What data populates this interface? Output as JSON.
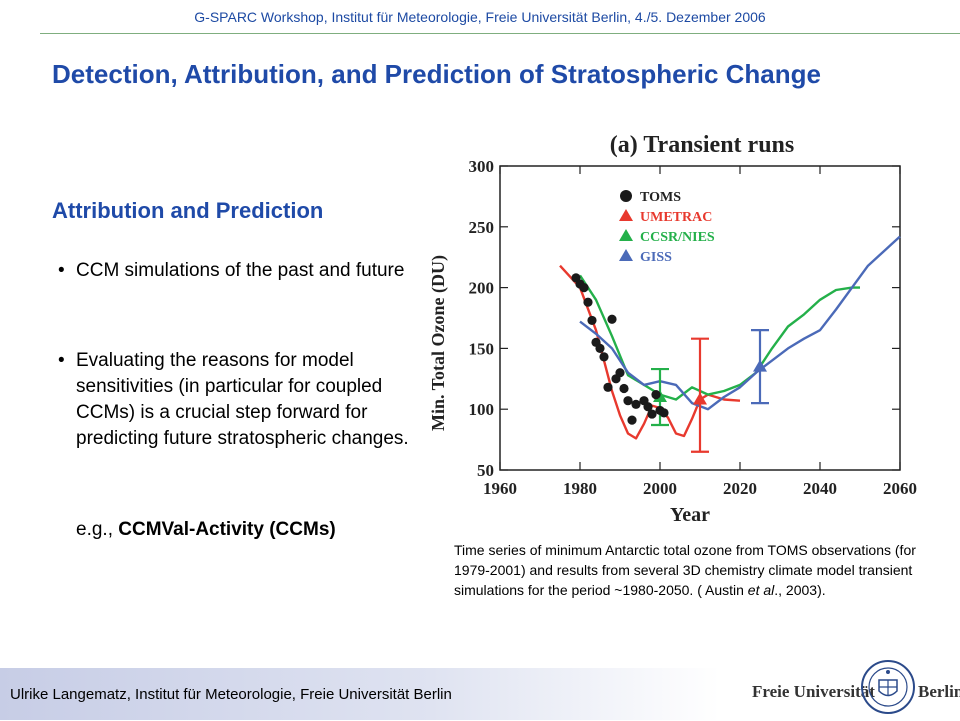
{
  "header": {
    "text": "G-SPARC Workshop, Institut für Meteorologie, Freie Universität Berlin, 4./5. Dezember 2006"
  },
  "title": "Detection, Attribution, and Prediction of Stratospheric Change",
  "section": {
    "heading": "Attribution and Prediction",
    "bullets": [
      "CCM simulations of the past and future",
      "Evaluating the reasons for model sensitivities (in particular for coupled CCMs) is a crucial step forward for predicting future stratospheric changes."
    ],
    "example_prefix": "e.g., ",
    "example_bold": "CCMVal-Activity (CCMs)"
  },
  "caption": {
    "part1": "Time series of minimum Antarctic total ozone from TOMS observations (for 1979-2001) and results from several 3D chemistry climate model transient simulations for the period ~1980-2050. ( Austin ",
    "italic": "et al",
    "part2": "., 2003)."
  },
  "footer": {
    "author": "Ulrike Langematz, Institut für Meteorologie, Freie Universität Berlin",
    "logo_left": "Freie Universität",
    "logo_right": "Berlin"
  },
  "chart_data": {
    "type": "line",
    "title": "(a) Transient runs",
    "xlabel": "Year",
    "ylabel": "Min. Total Ozone (DU)",
    "xlim": [
      1960,
      2060
    ],
    "ylim": [
      50,
      300
    ],
    "xticks": [
      1960,
      1980,
      2000,
      2020,
      2040,
      2060
    ],
    "yticks": [
      50,
      100,
      150,
      200,
      250,
      300
    ],
    "legend_position": "top-left",
    "colors": {
      "toms": "#1a1a1a",
      "umetrac": "#e8392e",
      "ccsr": "#24b04a",
      "giss": "#4b6ab8"
    },
    "series": [
      {
        "name": "TOMS",
        "kind": "points",
        "color": "#1a1a1a",
        "x": [
          1979,
          1980,
          1981,
          1982,
          1983,
          1984,
          1985,
          1986,
          1987,
          1988,
          1989,
          1990,
          1991,
          1992,
          1993,
          1994,
          1996,
          1997,
          1998,
          1999,
          2000,
          2001
        ],
        "y": [
          208,
          203,
          200,
          188,
          173,
          155,
          150,
          143,
          118,
          174,
          125,
          130,
          117,
          107,
          91,
          104,
          107,
          102,
          96,
          112,
          99,
          97
        ]
      },
      {
        "name": "UMETRAC",
        "kind": "line",
        "color": "#e8392e",
        "x": [
          1975,
          1980,
          1984,
          1986,
          1988,
          1990,
          1992,
          1994,
          1996,
          1998,
          2000,
          2002,
          2004,
          2006,
          2008,
          2010,
          2012,
          2016,
          2020
        ],
        "y": [
          218,
          200,
          165,
          140,
          115,
          95,
          80,
          76,
          88,
          103,
          101,
          93,
          80,
          78,
          92,
          108,
          112,
          108,
          107
        ]
      },
      {
        "name": "CCSR/NIES",
        "kind": "line",
        "color": "#24b04a",
        "x": [
          1980,
          1984,
          1988,
          1992,
          1996,
          2000,
          2004,
          2008,
          2012,
          2016,
          2020,
          2024,
          2028,
          2032,
          2036,
          2040,
          2044,
          2048,
          2050
        ],
        "y": [
          210,
          190,
          160,
          128,
          120,
          112,
          108,
          118,
          112,
          115,
          120,
          130,
          150,
          168,
          178,
          190,
          198,
          200,
          200
        ]
      },
      {
        "name": "GISS",
        "kind": "line",
        "color": "#4b6ab8",
        "x": [
          1980,
          1984,
          1988,
          1992,
          1996,
          2000,
          2004,
          2008,
          2012,
          2016,
          2020,
          2024,
          2028,
          2032,
          2036,
          2040,
          2044,
          2048,
          2052,
          2056,
          2060
        ],
        "y": [
          172,
          162,
          150,
          130,
          120,
          123,
          120,
          105,
          100,
          110,
          118,
          130,
          140,
          150,
          158,
          165,
          182,
          200,
          218,
          230,
          242
        ]
      }
    ],
    "error_bars": [
      {
        "series": "UMETRAC",
        "x": 2010,
        "y": 108,
        "low": 65,
        "high": 158,
        "color": "#e8392e"
      },
      {
        "series": "CCSR/NIES",
        "x": 2000,
        "y": 110,
        "low": 87,
        "high": 133,
        "color": "#24b04a"
      },
      {
        "series": "GISS",
        "x": 2025,
        "y": 135,
        "low": 105,
        "high": 165,
        "color": "#4b6ab8"
      }
    ]
  }
}
